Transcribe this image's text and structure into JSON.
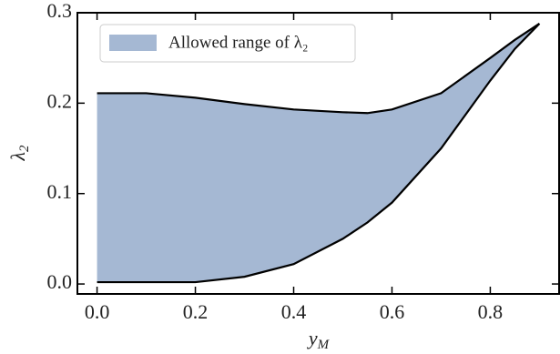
{
  "chart_data": {
    "type": "fill_between",
    "xlabel": {
      "base": "y",
      "sub": "M"
    },
    "ylabel": {
      "base": "λ",
      "sub": "2"
    },
    "x": [
      0,
      0.1,
      0.2,
      0.3,
      0.4,
      0.5,
      0.55,
      0.6,
      0.7,
      0.8,
      0.85,
      0.9
    ],
    "series": [
      {
        "name": "Allowed range of λ₂",
        "color": "#a5b8d3",
        "line_color": "#000000",
        "lower": [
          0.002,
          0.002,
          0.002,
          0.008,
          0.022,
          0.05,
          0.068,
          0.09,
          0.15,
          0.225,
          0.26,
          0.288
        ],
        "upper": [
          0.211,
          0.211,
          0.206,
          0.199,
          0.193,
          0.19,
          0.189,
          0.193,
          0.211,
          0.25,
          0.27,
          0.288
        ]
      }
    ],
    "xlim": [
      -0.04,
      0.94
    ],
    "ylim": [
      -0.011,
      0.3
    ],
    "xticks": [
      {
        "value": 0,
        "label": "0.0"
      },
      0.2,
      0.4,
      0.6,
      0.8
    ],
    "yticks": [
      {
        "value": 0,
        "label": "0.0"
      },
      0.1,
      0.2,
      0.3
    ],
    "legend": "upper left",
    "grid": false
  }
}
